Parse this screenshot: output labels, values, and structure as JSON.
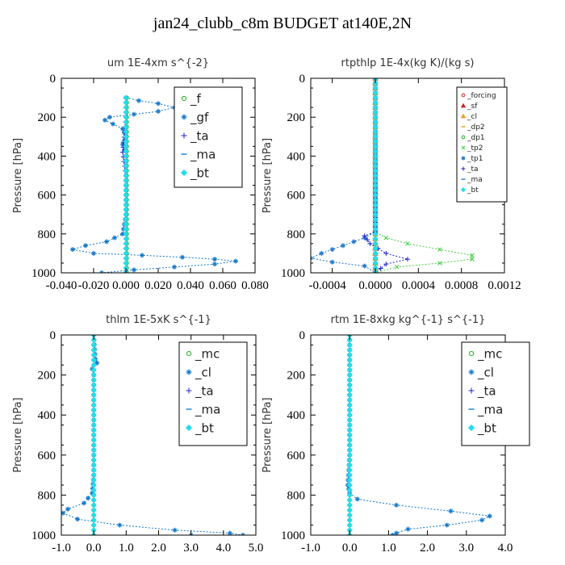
{
  "figure_title": "jan24_clubb_c8m  BUDGET at140E,2N",
  "chart_data": [
    {
      "type": "line",
      "title": "um   1E-4xm s^{-2}",
      "ylabel": "Pressure [hPa]",
      "xlim": [
        -0.04,
        0.08
      ],
      "ylim": [
        1000,
        0
      ],
      "xticks": [
        "-0.040",
        "-0.020",
        "0.000",
        "0.020",
        "0.040",
        "0.060",
        "0.080"
      ],
      "xtick_values": [
        -0.04,
        -0.02,
        0,
        0.02,
        0.04,
        0.06,
        0.08
      ],
      "yticks": [
        0,
        200,
        400,
        600,
        800,
        1000
      ],
      "legend": "top-right",
      "series": [
        {
          "name": "_f",
          "color": "#22bb22",
          "marker": "circle",
          "points": [
            [
              0.0005,
              100
            ],
            [
              0.0005,
              150
            ],
            [
              0.0005,
              200
            ],
            [
              0.0005,
              300
            ],
            [
              0.0005,
              400
            ],
            [
              0.0005,
              500
            ],
            [
              0.0005,
              600
            ],
            [
              0.0005,
              700
            ],
            [
              0.0005,
              800
            ],
            [
              0.0005,
              900
            ],
            [
              0.0005,
              1000
            ]
          ]
        },
        {
          "name": "_gf",
          "color": "#1177cc",
          "marker": "star",
          "points": [
            [
              0.0,
              100
            ],
            [
              0.008,
              115
            ],
            [
              0.02,
              130
            ],
            [
              0.03,
              150
            ],
            [
              0.02,
              170
            ],
            [
              0.005,
              185
            ],
            [
              -0.01,
              200
            ],
            [
              -0.013,
              215
            ],
            [
              -0.008,
              235
            ],
            [
              -0.002,
              260
            ],
            [
              0.0,
              300
            ],
            [
              -0.002,
              340
            ],
            [
              0.0,
              400
            ],
            [
              0.0,
              500
            ],
            [
              0.0,
              600
            ],
            [
              0.0,
              700
            ],
            [
              -0.002,
              800
            ],
            [
              -0.012,
              840
            ],
            [
              -0.025,
              860
            ],
            [
              -0.033,
              880
            ],
            [
              -0.02,
              900
            ],
            [
              0.01,
              910
            ],
            [
              0.035,
              920
            ],
            [
              0.055,
              930
            ],
            [
              0.068,
              940
            ],
            [
              0.055,
              955
            ],
            [
              0.03,
              970
            ],
            [
              0.005,
              985
            ],
            [
              -0.015,
              1000
            ]
          ]
        },
        {
          "name": "_ta",
          "color": "#2222cc",
          "marker": "plus",
          "points": [
            [
              0.0,
              100
            ],
            [
              0.0,
              200
            ],
            [
              -0.002,
              380
            ],
            [
              0.0,
              500
            ],
            [
              0.0,
              800
            ],
            [
              0.0,
              1000
            ]
          ]
        },
        {
          "name": "_ma",
          "color": "#2288dd",
          "marker": "dash",
          "points": [
            [
              0.0,
              100
            ],
            [
              0.0,
              500
            ],
            [
              0.0,
              1000
            ]
          ]
        },
        {
          "name": "_bt",
          "color": "#22ddee",
          "marker": "diamond",
          "points": [
            [
              0.0,
              100
            ],
            [
              0.0,
              500
            ],
            [
              0.0,
              1000
            ]
          ]
        }
      ]
    },
    {
      "type": "line",
      "title": "rtpthlp   1E-4x(kg K)/(kg s)",
      "ylabel": "Pressure [hPa]",
      "xlim": [
        -0.0006,
        0.0012
      ],
      "ylim": [
        1000,
        0
      ],
      "xticks": [
        "-0.0004",
        "0.0000",
        "0.0004",
        "0.0008",
        "0.0012"
      ],
      "xtick_values": [
        -0.0004,
        0,
        0.0004,
        0.0008,
        0.0012
      ],
      "yticks": [
        0,
        200,
        400,
        600,
        800,
        1000
      ],
      "legend": "top-right",
      "series": [
        {
          "name": "_forcing",
          "color": "#dd2222",
          "marker": "circle",
          "points": [
            [
              0,
              0
            ],
            [
              0,
              1000
            ]
          ]
        },
        {
          "name": "_sf",
          "color": "#cc2222",
          "marker": "triangle",
          "points": [
            [
              0,
              0
            ],
            [
              0,
              1000
            ]
          ]
        },
        {
          "name": "_cl",
          "color": "#ee9922",
          "marker": "triangle",
          "points": [
            [
              0,
              0
            ],
            [
              0,
              1000
            ]
          ]
        },
        {
          "name": "_dp2",
          "color": "#ddaa22",
          "marker": "dash",
          "points": [
            [
              0,
              0
            ],
            [
              0,
              1000
            ]
          ]
        },
        {
          "name": "_dp1",
          "color": "#22aa22",
          "marker": "circle",
          "points": [
            [
              0,
              0
            ],
            [
              0,
              1000
            ]
          ]
        },
        {
          "name": "_tp2",
          "color": "#44cc44",
          "marker": "x",
          "points": [
            [
              0,
              0
            ],
            [
              0,
              400
            ],
            [
              0,
              790
            ],
            [
              0.0001,
              820
            ],
            [
              0.0003,
              850
            ],
            [
              0.0006,
              880
            ],
            [
              0.0009,
              910
            ],
            [
              0.0009,
              930
            ],
            [
              0.0006,
              950
            ],
            [
              0.0002,
              970
            ],
            [
              0,
              1000
            ]
          ]
        },
        {
          "name": "_tp1",
          "color": "#2277cc",
          "marker": "star",
          "points": [
            [
              0,
              0
            ],
            [
              0,
              790
            ],
            [
              -0.0001,
              820
            ],
            [
              -0.0003,
              860
            ],
            [
              -0.0005,
              900
            ],
            [
              -0.0006,
              925
            ],
            [
              -0.0004,
              945
            ],
            [
              -0.0001,
              965
            ],
            [
              0,
              1000
            ]
          ]
        },
        {
          "name": "_ta",
          "color": "#2222cc",
          "marker": "plus",
          "points": [
            [
              0,
              0
            ],
            [
              0,
              790
            ],
            [
              -0.0001,
              810
            ],
            [
              -5e-05,
              850
            ],
            [
              0.0001,
              900
            ],
            [
              0.0003,
              930
            ],
            [
              0.0001,
              955
            ],
            [
              0,
              1000
            ]
          ]
        },
        {
          "name": "_ma",
          "color": "#2288dd",
          "marker": "dash",
          "points": [
            [
              0,
              0
            ],
            [
              0,
              1000
            ]
          ]
        },
        {
          "name": "_bt",
          "color": "#22ddee",
          "marker": "diamond",
          "points": [
            [
              0,
              0
            ],
            [
              0,
              1000
            ]
          ]
        }
      ]
    },
    {
      "type": "line",
      "title": "thlm   1E-5xK s^{-1}",
      "ylabel": "Pressure [hPa]",
      "xlim": [
        -1.0,
        5.0
      ],
      "ylim": [
        1000,
        0
      ],
      "xticks": [
        "-1.0",
        "0.0",
        "1.0",
        "2.0",
        "3.0",
        "4.0",
        "5.0"
      ],
      "xtick_values": [
        -1,
        0,
        1,
        2,
        3,
        4,
        5
      ],
      "yticks": [
        0,
        200,
        400,
        600,
        800,
        1000
      ],
      "legend": "top-right",
      "series": [
        {
          "name": "_mc",
          "color": "#22bb22",
          "marker": "circle",
          "points": [
            [
              0,
              0
            ],
            [
              0,
              200
            ],
            [
              0,
              400
            ],
            [
              0,
              600
            ],
            [
              0,
              800
            ],
            [
              0,
              1000
            ]
          ]
        },
        {
          "name": "_cl",
          "color": "#1177cc",
          "marker": "star",
          "points": [
            [
              0,
              0
            ],
            [
              0.05,
              120
            ],
            [
              0.1,
              140
            ],
            [
              -0.05,
              170
            ],
            [
              0,
              200
            ],
            [
              0,
              400
            ],
            [
              0,
              600
            ],
            [
              0,
              700
            ],
            [
              -0.05,
              790
            ],
            [
              -0.3,
              840
            ],
            [
              -0.8,
              870
            ],
            [
              -0.95,
              890
            ],
            [
              -0.5,
              920
            ],
            [
              0.8,
              950
            ],
            [
              2.5,
              975
            ],
            [
              4.2,
              990
            ],
            [
              4.6,
              1000
            ],
            [
              3.0,
              1000
            ]
          ]
        },
        {
          "name": "_ta",
          "color": "#2222cc",
          "marker": "plus",
          "points": [
            [
              0,
              0
            ],
            [
              0,
              500
            ],
            [
              0,
              1000
            ]
          ]
        },
        {
          "name": "_ma",
          "color": "#2288dd",
          "marker": "dash",
          "points": [
            [
              0,
              0
            ],
            [
              0,
              1000
            ]
          ]
        },
        {
          "name": "_bt",
          "color": "#22ddee",
          "marker": "diamond",
          "points": [
            [
              0,
              0
            ],
            [
              0,
              1000
            ]
          ]
        }
      ]
    },
    {
      "type": "line",
      "title": "rtm   1E-8xkg kg^{-1} s^{-1}",
      "ylabel": "Pressure [hPa]",
      "xlim": [
        -1.0,
        4.0
      ],
      "ylim": [
        1000,
        0
      ],
      "xticks": [
        "-1.0",
        "0.0",
        "1.0",
        "2.0",
        "3.0",
        "4.0"
      ],
      "xtick_values": [
        -1,
        0,
        1,
        2,
        3,
        4
      ],
      "yticks": [
        0,
        200,
        400,
        600,
        800,
        1000
      ],
      "legend": "top-right",
      "series": [
        {
          "name": "_mc",
          "color": "#22bb22",
          "marker": "circle",
          "points": [
            [
              0,
              0
            ],
            [
              0,
              200
            ],
            [
              0,
              400
            ],
            [
              0,
              600
            ],
            [
              0,
              800
            ],
            [
              0,
              1000
            ]
          ]
        },
        {
          "name": "_cl",
          "color": "#1177cc",
          "marker": "star",
          "points": [
            [
              0,
              0
            ],
            [
              0,
              400
            ],
            [
              0,
              600
            ],
            [
              -0.05,
              750
            ],
            [
              0,
              790
            ],
            [
              0.2,
              820
            ],
            [
              1.2,
              850
            ],
            [
              2.6,
              880
            ],
            [
              3.6,
              905
            ],
            [
              3.4,
              925
            ],
            [
              2.5,
              950
            ],
            [
              1.5,
              970
            ],
            [
              1.2,
              990
            ],
            [
              1.1,
              1000
            ]
          ]
        },
        {
          "name": "_ta",
          "color": "#2222cc",
          "marker": "plus",
          "points": [
            [
              0,
              0
            ],
            [
              0,
              500
            ],
            [
              0,
              1000
            ]
          ]
        },
        {
          "name": "_ma",
          "color": "#2288dd",
          "marker": "dash",
          "points": [
            [
              0,
              0
            ],
            [
              0,
              1000
            ]
          ]
        },
        {
          "name": "_bt",
          "color": "#22ddee",
          "marker": "diamond",
          "points": [
            [
              0,
              0
            ],
            [
              0,
              1000
            ]
          ]
        }
      ]
    }
  ]
}
